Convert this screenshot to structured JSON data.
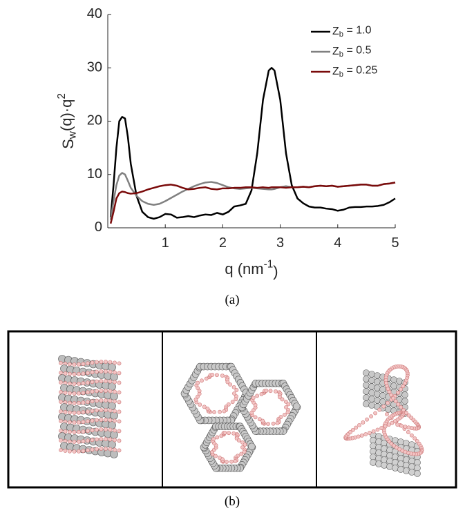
{
  "chart_data": {
    "type": "line",
    "xlabel": "q (nm^-1)",
    "ylabel": "S_w(q)·q^2",
    "xlim": [
      0,
      5
    ],
    "xticks": [
      1,
      2,
      3,
      4,
      5
    ],
    "ylim": [
      0,
      40
    ],
    "yticks": [
      0,
      10,
      20,
      30,
      40
    ],
    "legend": "upper right",
    "x": [
      0.05,
      0.1,
      0.15,
      0.2,
      0.25,
      0.3,
      0.35,
      0.4,
      0.5,
      0.6,
      0.7,
      0.8,
      0.9,
      1.0,
      1.1,
      1.2,
      1.3,
      1.4,
      1.5,
      1.6,
      1.7,
      1.8,
      1.9,
      2.0,
      2.1,
      2.2,
      2.3,
      2.4,
      2.5,
      2.6,
      2.7,
      2.8,
      2.85,
      2.9,
      3.0,
      3.1,
      3.2,
      3.3,
      3.4,
      3.5,
      3.6,
      3.7,
      3.8,
      3.9,
      4.0,
      4.1,
      4.2,
      4.3,
      4.4,
      4.5,
      4.6,
      4.7,
      4.8,
      4.9,
      5.0
    ],
    "series": [
      {
        "name": "Z_b = 1.0",
        "color": "#000000",
        "values": [
          2,
          8,
          15,
          20,
          20.8,
          20.5,
          17,
          12,
          6,
          3,
          2,
          1.7,
          2,
          2.6,
          2.5,
          1.9,
          2,
          2.2,
          2,
          2.3,
          2.5,
          2.4,
          2.8,
          2.5,
          3,
          4,
          4.2,
          4.5,
          7,
          14,
          24,
          29.5,
          30,
          29.5,
          24,
          14,
          8,
          5.5,
          4.6,
          4,
          3.8,
          3.8,
          3.6,
          3.5,
          3.2,
          3.4,
          3.8,
          3.9,
          3.9,
          4,
          4,
          4.1,
          4.3,
          4.8,
          5.5
        ]
      },
      {
        "name": "Z_b = 0.5",
        "color": "#808080",
        "values": [
          1.5,
          5,
          8,
          9.8,
          10.3,
          10,
          8.8,
          7.5,
          6,
          5,
          4.5,
          4.3,
          4.5,
          5,
          5.6,
          6.2,
          6.8,
          7.3,
          7.8,
          8.2,
          8.5,
          8.6,
          8.4,
          8,
          7.6,
          7.4,
          7.3,
          7.4,
          7.5,
          7.4,
          7.3,
          7.2,
          7.2,
          7.3,
          7.6,
          7.8,
          7.6,
          7.6,
          7.7,
          7.6,
          7.8,
          7.9,
          7.8,
          7.9,
          7.7,
          7.8,
          7.9,
          8,
          8.1,
          8.1,
          7.9,
          7.9,
          8.2,
          8.3,
          8.5
        ]
      },
      {
        "name": "Z_b = 0.25",
        "color": "#7a0a0a",
        "values": [
          0.8,
          3,
          5.5,
          6.5,
          6.8,
          6.7,
          6.5,
          6.4,
          6.5,
          6.8,
          7.2,
          7.5,
          7.8,
          8,
          8.1,
          7.9,
          7.5,
          7.2,
          7.3,
          7.5,
          7.6,
          7.3,
          7.2,
          7.4,
          7.4,
          7.5,
          7.5,
          7.6,
          7.6,
          7.5,
          7.6,
          7.5,
          7.6,
          7.6,
          7.6,
          7.5,
          7.6,
          7.6,
          7.7,
          7.6,
          7.8,
          7.9,
          7.8,
          7.9,
          7.7,
          7.8,
          7.9,
          8,
          8.1,
          8.1,
          7.9,
          7.9,
          8.2,
          8.3,
          8.5
        ]
      }
    ]
  },
  "panel_a_label": "(a)",
  "panel_b_label": "(b)"
}
